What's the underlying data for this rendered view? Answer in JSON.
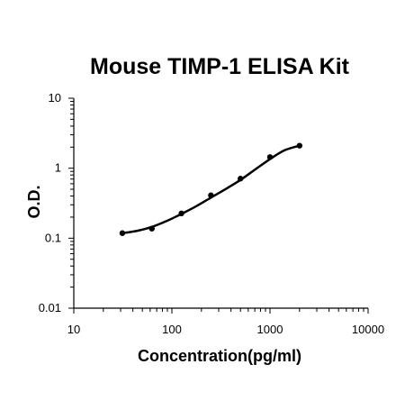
{
  "chart_data": {
    "type": "scatter",
    "title": "Mouse TIMP-1 ELISA Kit",
    "xlabel": "Concentration(pg/ml)",
    "ylabel": "O.D.",
    "x_scale": "log",
    "y_scale": "log",
    "xlim": [
      10,
      10000
    ],
    "ylim": [
      0.01,
      10
    ],
    "x_ticks": [
      "10",
      "100",
      "1000",
      "10000"
    ],
    "y_ticks": [
      "0.01",
      "0.1",
      "1",
      "10"
    ],
    "grid": false,
    "legend": "none",
    "series": [
      {
        "points": [
          {
            "x": 31.25,
            "y": 0.118
          },
          {
            "x": 62.5,
            "y": 0.137
          },
          {
            "x": 125,
            "y": 0.226
          },
          {
            "x": 250,
            "y": 0.41
          },
          {
            "x": 500,
            "y": 0.71
          },
          {
            "x": 1000,
            "y": 1.44
          },
          {
            "x": 2000,
            "y": 2.1
          }
        ],
        "fit_curve": {
          "x": [
            31.25,
            45,
            62.5,
            90,
            125,
            180,
            250,
            350,
            500,
            700,
            1000,
            1400,
            2000
          ],
          "y": [
            0.118,
            0.128,
            0.145,
            0.178,
            0.222,
            0.29,
            0.38,
            0.5,
            0.68,
            0.95,
            1.35,
            1.8,
            2.1
          ]
        }
      }
    ],
    "colors": {
      "line": "#000000",
      "marker": "#000000"
    }
  }
}
